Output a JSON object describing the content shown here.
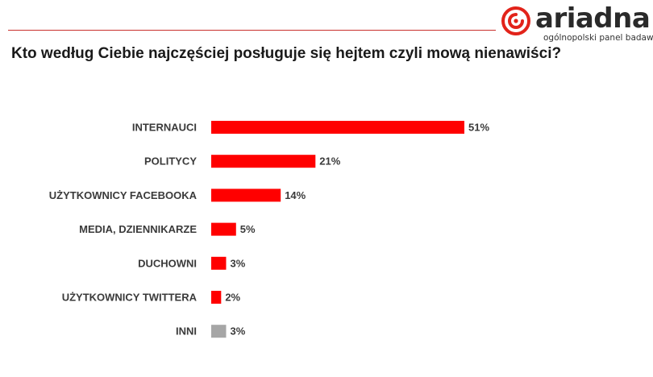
{
  "brand": {
    "name": "ariadna",
    "tagline": "ogólnopolski panel badawczy"
  },
  "chart_data": {
    "type": "bar",
    "orientation": "horizontal",
    "title": "Kto według Ciebie najczęściej posługuje się hejtem czyli mową nienawiści?",
    "categories": [
      "INTERNAUCI",
      "POLITYCY",
      "UŻYTKOWNICY FACEBOOKA",
      "MEDIA, DZIENNIKARZE",
      "DUCHOWNI",
      "UŻYTKOWNICY TWITTERA",
      "INNI"
    ],
    "values": [
      51,
      21,
      14,
      5,
      3,
      2,
      3
    ],
    "value_labels": [
      "51%",
      "21%",
      "14%",
      "5%",
      "3%",
      "2%",
      "3%"
    ],
    "colors": [
      "#ff0000",
      "#ff0000",
      "#ff0000",
      "#ff0000",
      "#ff0000",
      "#ff0000",
      "#a6a6a6"
    ],
    "xlim": [
      0,
      100
    ],
    "unit": "%",
    "grid": false,
    "legend": "none"
  }
}
